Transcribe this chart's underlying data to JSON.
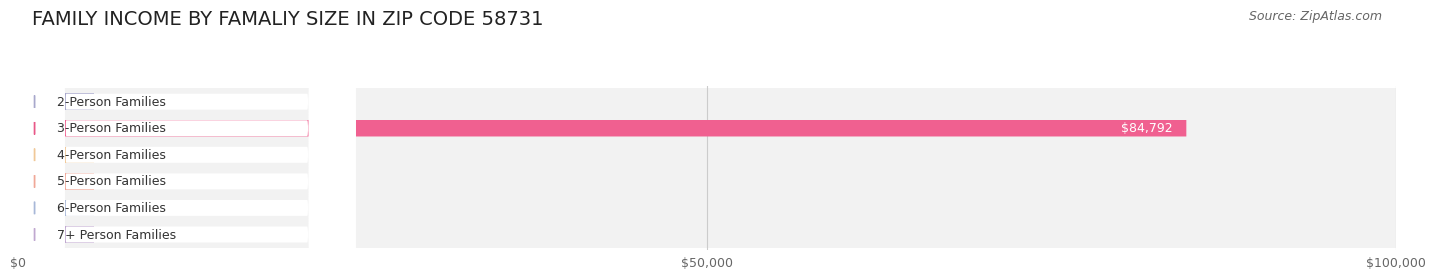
{
  "title": "FAMILY INCOME BY FAMALIY SIZE IN ZIP CODE 58731",
  "source": "Source: ZipAtlas.com",
  "categories": [
    "2-Person Families",
    "3-Person Families",
    "4-Person Families",
    "5-Person Families",
    "6-Person Families",
    "7+ Person Families"
  ],
  "values": [
    0,
    84792,
    0,
    0,
    0,
    0
  ],
  "bar_colors": [
    "#a8a8cc",
    "#f06090",
    "#f0c898",
    "#f0a898",
    "#a8b8d8",
    "#c0a8d0"
  ],
  "label_colors": [
    "#a8a8cc",
    "#e85888",
    "#f0c898",
    "#f0a898",
    "#a8b8d8",
    "#c0a8d0"
  ],
  "row_bg_colors": [
    "#f5f5f5",
    "#f0f0f0",
    "#f5f5f5",
    "#f0f0f0",
    "#f5f5f5",
    "#f0f0f0"
  ],
  "xlim": [
    0,
    100000
  ],
  "xticks": [
    0,
    50000,
    100000
  ],
  "xtick_labels": [
    "$0",
    "$50,000",
    "$100,000"
  ],
  "title_fontsize": 14,
  "source_fontsize": 9,
  "label_fontsize": 9,
  "value_fontsize": 9,
  "background_color": "#ffffff"
}
